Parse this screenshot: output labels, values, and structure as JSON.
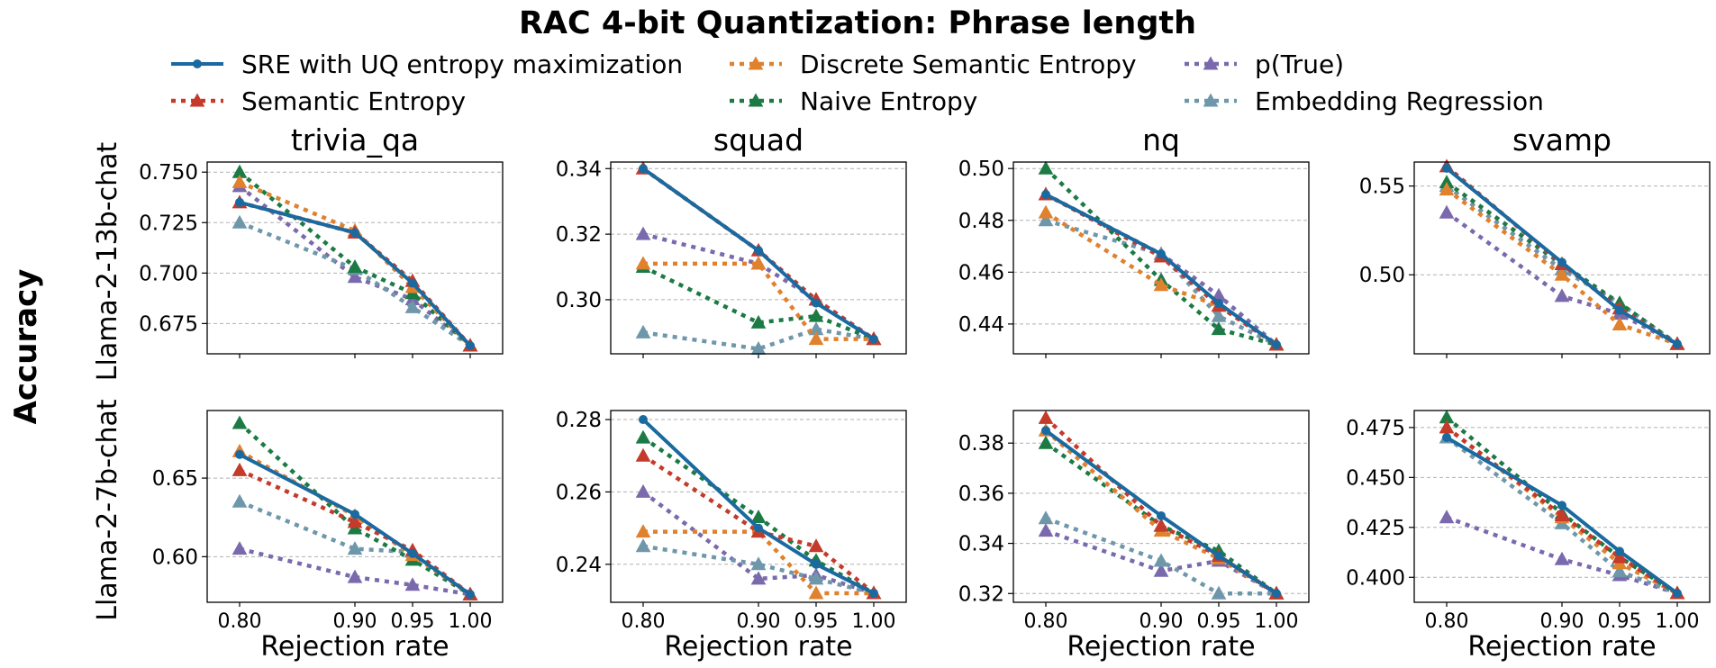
{
  "colors": {
    "sre": "#1a6aa0",
    "discrete": "#e0812e",
    "ptrue": "#7a6aad",
    "semantic": "#c43a2b",
    "naive": "#1c7a45",
    "embedding": "#6f97aa",
    "grid": "#b0b0b0"
  },
  "chart_data": {
    "type": "line",
    "title": "RAC 4-bit Quantization: Phrase length",
    "ylabel": "Accuracy",
    "xlabel": "Rejection rate",
    "x": [
      0.8,
      0.9,
      0.95,
      1.0
    ],
    "xtick_labels": [
      "0.80",
      "0.90",
      "0.95",
      "1.00"
    ],
    "legend": [
      {
        "key": "sre",
        "label": "SRE with UQ entropy maximization",
        "style": "solid",
        "marker": "circle"
      },
      {
        "key": "discrete",
        "label": "Discrete Semantic Entropy",
        "style": "dotted",
        "marker": "triangle"
      },
      {
        "key": "ptrue",
        "label": "p(True)",
        "style": "dotted",
        "marker": "triangle"
      },
      {
        "key": "semantic",
        "label": "Semantic Entropy",
        "style": "dotted",
        "marker": "triangle"
      },
      {
        "key": "naive",
        "label": "Naive Entropy",
        "style": "dotted",
        "marker": "triangle"
      },
      {
        "key": "embedding",
        "label": "Embedding Regression",
        "style": "dotted",
        "marker": "triangle"
      }
    ],
    "columns": [
      "trivia_qa",
      "squad",
      "nq",
      "svamp"
    ],
    "rows": [
      "Llama-2-13b-chat",
      "Llama-2-7b-chat"
    ],
    "panels": [
      {
        "row": 0,
        "col": 0,
        "ylim": [
          0.66,
          0.755
        ],
        "yticks": [
          0.675,
          0.7,
          0.725,
          0.75
        ],
        "ytick_labels": [
          "0.675",
          "0.700",
          "0.725",
          "0.750"
        ],
        "series": {
          "ptrue": [
            0.743,
            0.698,
            0.687,
            0.664
          ],
          "embedding": [
            0.725,
            0.702,
            0.683,
            0.664
          ],
          "naive": [
            0.75,
            0.703,
            0.69,
            0.664
          ],
          "discrete": [
            0.745,
            0.721,
            0.693,
            0.664
          ],
          "semantic": [
            0.735,
            0.72,
            0.696,
            0.664
          ],
          "sre": [
            0.735,
            0.72,
            0.695,
            0.664
          ]
        }
      },
      {
        "row": 0,
        "col": 1,
        "ylim": [
          0.2835,
          0.342
        ],
        "yticks": [
          0.3,
          0.32,
          0.34
        ],
        "ytick_labels": [
          "0.30",
          "0.32",
          "0.34"
        ],
        "series": {
          "ptrue": [
            0.32,
            0.311,
            0.3,
            0.288
          ],
          "embedding": [
            0.29,
            0.285,
            0.291,
            0.288
          ],
          "naive": [
            0.31,
            0.293,
            0.295,
            0.288
          ],
          "discrete": [
            0.311,
            0.311,
            0.288,
            0.288
          ],
          "semantic": [
            0.34,
            0.315,
            0.3,
            0.288
          ],
          "sre": [
            0.34,
            0.315,
            0.299,
            0.288
          ]
        }
      },
      {
        "row": 0,
        "col": 2,
        "ylim": [
          0.4285,
          0.5025
        ],
        "yticks": [
          0.44,
          0.46,
          0.48,
          0.5
        ],
        "ytick_labels": [
          "0.44",
          "0.46",
          "0.48",
          "0.50"
        ],
        "series": {
          "ptrue": [
            0.49,
            0.467,
            0.451,
            0.432
          ],
          "embedding": [
            0.48,
            0.467,
            0.443,
            0.432
          ],
          "naive": [
            0.5,
            0.457,
            0.438,
            0.432
          ],
          "discrete": [
            0.483,
            0.455,
            0.447,
            0.432
          ],
          "semantic": [
            0.49,
            0.466,
            0.447,
            0.432
          ],
          "sre": [
            0.49,
            0.467,
            0.448,
            0.432
          ]
        }
      },
      {
        "row": 0,
        "col": 3,
        "ylim": [
          0.4555,
          0.5635
        ],
        "yticks": [
          0.5,
          0.55
        ],
        "ytick_labels": [
          "0.50",
          "0.55"
        ],
        "series": {
          "ptrue": [
            0.535,
            0.488,
            0.478,
            0.461
          ],
          "embedding": [
            0.55,
            0.503,
            0.484,
            0.461
          ],
          "naive": [
            0.552,
            0.506,
            0.484,
            0.461
          ],
          "discrete": [
            0.548,
            0.5,
            0.472,
            0.461
          ],
          "semantic": [
            0.561,
            0.506,
            0.481,
            0.461
          ],
          "sre": [
            0.56,
            0.507,
            0.48,
            0.461
          ]
        }
      },
      {
        "row": 1,
        "col": 0,
        "ylim": [
          0.571,
          0.693
        ],
        "yticks": [
          0.6,
          0.65
        ],
        "ytick_labels": [
          "0.60",
          "0.65"
        ],
        "series": {
          "ptrue": [
            0.605,
            0.587,
            0.582,
            0.576
          ],
          "embedding": [
            0.635,
            0.605,
            0.603,
            0.576
          ],
          "naive": [
            0.685,
            0.618,
            0.598,
            0.576
          ],
          "discrete": [
            0.667,
            0.626,
            0.601,
            0.576
          ],
          "semantic": [
            0.655,
            0.622,
            0.604,
            0.576
          ],
          "sre": [
            0.665,
            0.627,
            0.602,
            0.576
          ]
        }
      },
      {
        "row": 1,
        "col": 1,
        "ylim": [
          0.2295,
          0.2825
        ],
        "yticks": [
          0.24,
          0.26,
          0.28
        ],
        "ytick_labels": [
          "0.24",
          "0.26",
          "0.28"
        ],
        "series": {
          "ptrue": [
            0.26,
            0.236,
            0.237,
            0.232
          ],
          "embedding": [
            0.245,
            0.24,
            0.236,
            0.232
          ],
          "naive": [
            0.275,
            0.253,
            0.241,
            0.232
          ],
          "discrete": [
            0.249,
            0.249,
            0.232,
            0.232
          ],
          "semantic": [
            0.27,
            0.249,
            0.245,
            0.232
          ],
          "sre": [
            0.28,
            0.25,
            0.24,
            0.232
          ]
        }
      },
      {
        "row": 1,
        "col": 2,
        "ylim": [
          0.3165,
          0.393
        ],
        "yticks": [
          0.32,
          0.34,
          0.36,
          0.38
        ],
        "ytick_labels": [
          "0.32",
          "0.34",
          "0.36",
          "0.38"
        ],
        "series": {
          "ptrue": [
            0.345,
            0.329,
            0.333,
            0.32
          ],
          "embedding": [
            0.35,
            0.333,
            0.32,
            0.32
          ],
          "naive": [
            0.38,
            0.347,
            0.337,
            0.32
          ],
          "discrete": [
            0.385,
            0.345,
            0.334,
            0.32
          ],
          "semantic": [
            0.39,
            0.347,
            0.335,
            0.32
          ],
          "sre": [
            0.385,
            0.351,
            0.335,
            0.32
          ]
        }
      },
      {
        "row": 1,
        "col": 3,
        "ylim": [
          0.3875,
          0.4835
        ],
        "yticks": [
          0.4,
          0.425,
          0.45,
          0.475
        ],
        "ytick_labels": [
          "0.400",
          "0.425",
          "0.450",
          "0.475"
        ],
        "series": {
          "ptrue": [
            0.43,
            0.409,
            0.401,
            0.392
          ],
          "embedding": [
            0.47,
            0.427,
            0.403,
            0.392
          ],
          "naive": [
            0.48,
            0.432,
            0.41,
            0.392
          ],
          "discrete": [
            0.475,
            0.43,
            0.407,
            0.392
          ],
          "semantic": [
            0.475,
            0.431,
            0.41,
            0.392
          ],
          "sre": [
            0.47,
            0.436,
            0.413,
            0.392
          ]
        }
      }
    ]
  }
}
